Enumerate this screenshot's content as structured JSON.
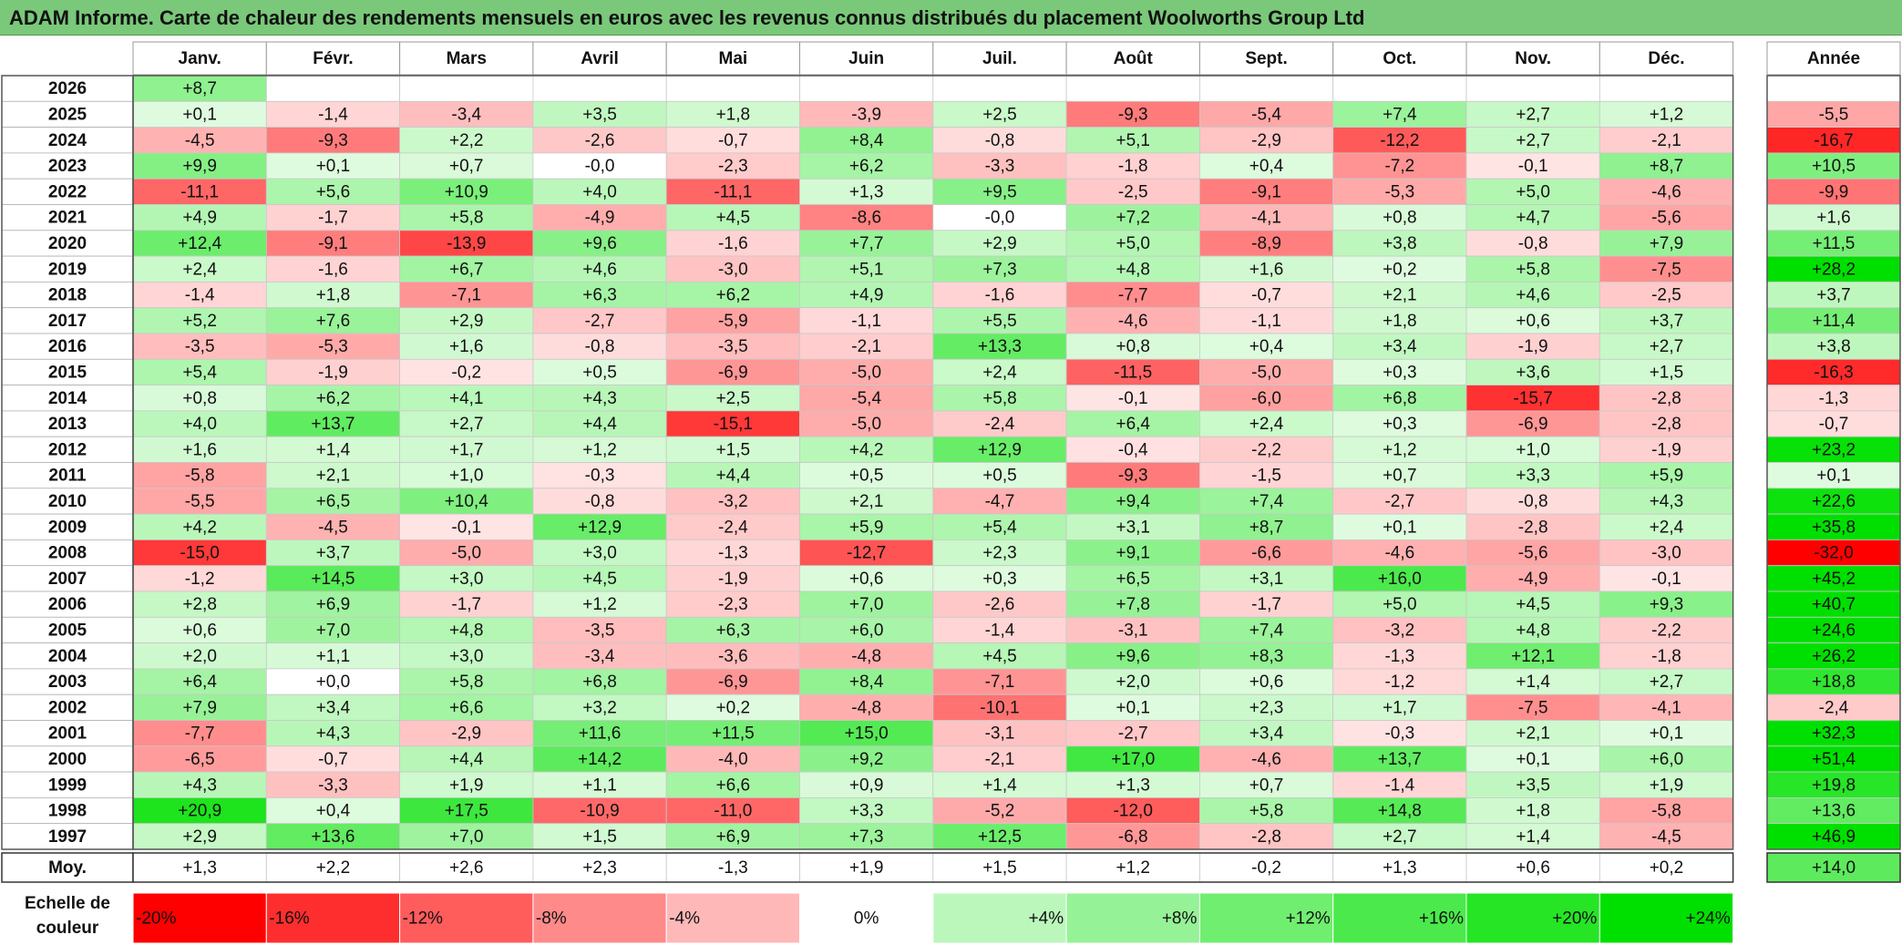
{
  "title": "ADAM Informe. Carte de chaleur des rendements mensuels en euros avec les revenus connus distribués du placement Woolworths Group Ltd",
  "colors": {
    "positive_max": "#00e000",
    "negative_max": "#ff0000",
    "neutral": "#ffffff",
    "title_bg": "#7ac87a"
  },
  "chart_data": {
    "type": "heatmap",
    "columns": [
      "Janv.",
      "Févr.",
      "Mars",
      "Avril",
      "Mai",
      "Juin",
      "Juil.",
      "Août",
      "Sept.",
      "Oct.",
      "Nov.",
      "Déc."
    ],
    "year_column": "Année",
    "rows": [
      {
        "year": "2026",
        "values": [
          8.7,
          null,
          null,
          null,
          null,
          null,
          null,
          null,
          null,
          null,
          null,
          null
        ],
        "annual": null
      },
      {
        "year": "2025",
        "values": [
          0.1,
          -1.4,
          -3.4,
          3.5,
          1.8,
          -3.9,
          2.5,
          -9.3,
          -5.4,
          7.4,
          2.7,
          1.2
        ],
        "annual": -5.5
      },
      {
        "year": "2024",
        "values": [
          -4.5,
          -9.3,
          2.2,
          -2.6,
          -0.7,
          8.4,
          -0.8,
          5.1,
          -2.9,
          -12.2,
          2.7,
          -2.1
        ],
        "annual": -16.7
      },
      {
        "year": "2023",
        "values": [
          9.9,
          0.1,
          0.7,
          -0.0,
          -2.3,
          6.2,
          -3.3,
          -1.8,
          0.4,
          -7.2,
          -0.1,
          8.7
        ],
        "annual": 10.5
      },
      {
        "year": "2022",
        "values": [
          -11.1,
          5.6,
          10.9,
          4.0,
          -11.1,
          1.3,
          9.5,
          -2.5,
          -9.1,
          -5.3,
          5.0,
          -4.6
        ],
        "annual": -9.9
      },
      {
        "year": "2021",
        "values": [
          4.9,
          -1.7,
          5.8,
          -4.9,
          4.5,
          -8.6,
          -0.0,
          7.2,
          -4.1,
          0.8,
          4.7,
          -5.6
        ],
        "annual": 1.6
      },
      {
        "year": "2020",
        "values": [
          12.4,
          -9.1,
          -13.9,
          9.6,
          -1.6,
          7.7,
          2.9,
          5.0,
          -8.9,
          3.8,
          -0.8,
          7.9
        ],
        "annual": 11.5
      },
      {
        "year": "2019",
        "values": [
          2.4,
          -1.6,
          6.7,
          4.6,
          -3.0,
          5.1,
          7.3,
          4.8,
          1.6,
          0.2,
          5.8,
          -7.5
        ],
        "annual": 28.2
      },
      {
        "year": "2018",
        "values": [
          -1.4,
          1.8,
          -7.1,
          6.3,
          6.2,
          4.9,
          -1.6,
          -7.7,
          -0.7,
          2.1,
          4.6,
          -2.5
        ],
        "annual": 3.7
      },
      {
        "year": "2017",
        "values": [
          5.2,
          7.6,
          2.9,
          -2.7,
          -5.9,
          -1.1,
          5.5,
          -4.6,
          -1.1,
          1.8,
          0.6,
          3.7
        ],
        "annual": 11.4
      },
      {
        "year": "2016",
        "values": [
          -3.5,
          -5.3,
          1.6,
          -0.8,
          -3.5,
          -2.1,
          13.3,
          0.8,
          0.4,
          3.4,
          -1.9,
          2.7
        ],
        "annual": 3.8
      },
      {
        "year": "2015",
        "values": [
          5.4,
          -1.9,
          -0.2,
          0.5,
          -6.9,
          -5.0,
          2.4,
          -11.5,
          -5.0,
          0.3,
          3.6,
          1.5
        ],
        "annual": -16.3
      },
      {
        "year": "2014",
        "values": [
          0.8,
          6.2,
          4.1,
          4.3,
          2.5,
          -5.4,
          5.8,
          -0.1,
          -6.0,
          6.8,
          -15.7,
          -2.8
        ],
        "annual": -1.3
      },
      {
        "year": "2013",
        "values": [
          4.0,
          13.7,
          2.7,
          4.4,
          -15.1,
          -5.0,
          -2.4,
          6.4,
          2.4,
          0.3,
          -6.9,
          -2.8
        ],
        "annual": -0.7
      },
      {
        "year": "2012",
        "values": [
          1.6,
          1.4,
          1.7,
          1.2,
          1.5,
          4.2,
          12.9,
          -0.4,
          -2.2,
          1.2,
          1.0,
          -1.9
        ],
        "annual": 23.2
      },
      {
        "year": "2011",
        "values": [
          -5.8,
          2.1,
          1.0,
          -0.3,
          4.4,
          0.5,
          0.5,
          -9.3,
          -1.5,
          0.7,
          3.3,
          5.9
        ],
        "annual": 0.1
      },
      {
        "year": "2010",
        "values": [
          -5.5,
          6.5,
          10.4,
          -0.8,
          -3.2,
          2.1,
          -4.7,
          9.4,
          7.4,
          -2.7,
          -0.8,
          4.3
        ],
        "annual": 22.6
      },
      {
        "year": "2009",
        "values": [
          4.2,
          -4.5,
          -0.1,
          12.9,
          -2.4,
          5.9,
          5.4,
          3.1,
          8.7,
          0.1,
          -2.8,
          2.4
        ],
        "annual": 35.8
      },
      {
        "year": "2008",
        "values": [
          -15.0,
          3.7,
          -5.0,
          3.0,
          -1.3,
          -12.7,
          2.3,
          9.1,
          -6.6,
          -4.6,
          -5.6,
          -3.0
        ],
        "annual": -32.0
      },
      {
        "year": "2007",
        "values": [
          -1.2,
          14.5,
          3.0,
          4.5,
          -1.9,
          0.6,
          0.3,
          6.5,
          3.1,
          16.0,
          -4.9,
          -0.1
        ],
        "annual": 45.2
      },
      {
        "year": "2006",
        "values": [
          2.8,
          6.9,
          -1.7,
          1.2,
          -2.3,
          7.0,
          -2.6,
          7.8,
          -1.7,
          5.0,
          4.5,
          9.3
        ],
        "annual": 40.7
      },
      {
        "year": "2005",
        "values": [
          0.6,
          7.0,
          4.8,
          -3.5,
          6.3,
          6.0,
          -1.4,
          -3.1,
          7.4,
          -3.2,
          4.8,
          -2.2
        ],
        "annual": 24.6
      },
      {
        "year": "2004",
        "values": [
          2.0,
          1.1,
          3.0,
          -3.4,
          -3.6,
          -4.8,
          4.5,
          9.6,
          8.3,
          -1.3,
          12.1,
          -1.8
        ],
        "annual": 26.2
      },
      {
        "year": "2003",
        "values": [
          6.4,
          0.0,
          5.8,
          6.8,
          -6.9,
          8.4,
          -7.1,
          2.0,
          0.6,
          -1.2,
          1.4,
          2.7
        ],
        "annual": 18.8
      },
      {
        "year": "2002",
        "values": [
          7.9,
          3.4,
          6.6,
          3.2,
          0.2,
          -4.8,
          -10.1,
          0.1,
          2.3,
          1.7,
          -7.5,
          -4.1
        ],
        "annual": -2.4
      },
      {
        "year": "2001",
        "values": [
          -7.7,
          4.3,
          -2.9,
          11.6,
          11.5,
          15.0,
          -3.1,
          -2.7,
          3.4,
          -0.3,
          2.1,
          0.1
        ],
        "annual": 32.3
      },
      {
        "year": "2000",
        "values": [
          -6.5,
          -0.7,
          4.4,
          14.2,
          -4.0,
          9.2,
          -2.1,
          17.0,
          -4.6,
          13.7,
          0.1,
          6.0
        ],
        "annual": 51.4
      },
      {
        "year": "1999",
        "values": [
          4.3,
          -3.3,
          1.9,
          1.1,
          6.6,
          0.9,
          1.4,
          1.3,
          0.7,
          -1.4,
          3.5,
          1.9
        ],
        "annual": 19.8
      },
      {
        "year": "1998",
        "values": [
          20.9,
          0.4,
          17.5,
          -10.9,
          -11.0,
          3.3,
          -5.2,
          -12.0,
          5.8,
          14.8,
          1.8,
          -5.8
        ],
        "annual": 13.6
      },
      {
        "year": "1997",
        "values": [
          2.9,
          13.6,
          7.0,
          1.5,
          6.9,
          7.3,
          12.5,
          -6.8,
          -2.8,
          2.7,
          1.4,
          -4.5
        ],
        "annual": 46.9
      }
    ],
    "average": {
      "label": "Moy.",
      "values": [
        1.3,
        2.2,
        2.6,
        2.3,
        -1.3,
        1.9,
        1.5,
        1.2,
        -0.2,
        1.3,
        0.6,
        0.2
      ],
      "annual": 14.0
    },
    "color_scale": {
      "label": "Echelle de couleur",
      "stops": [
        {
          "label": "-20%",
          "value": -20
        },
        {
          "label": "-16%",
          "value": -16
        },
        {
          "label": "-12%",
          "value": -12
        },
        {
          "label": "-8%",
          "value": -8
        },
        {
          "label": "-4%",
          "value": -4
        },
        {
          "label": "0%",
          "value": 0
        },
        {
          "label": "+4%",
          "value": 4
        },
        {
          "label": "+8%",
          "value": 8
        },
        {
          "label": "+12%",
          "value": 12
        },
        {
          "label": "+16%",
          "value": 16
        },
        {
          "label": "+20%",
          "value": 20
        },
        {
          "label": "+24%",
          "value": 24
        }
      ]
    }
  }
}
